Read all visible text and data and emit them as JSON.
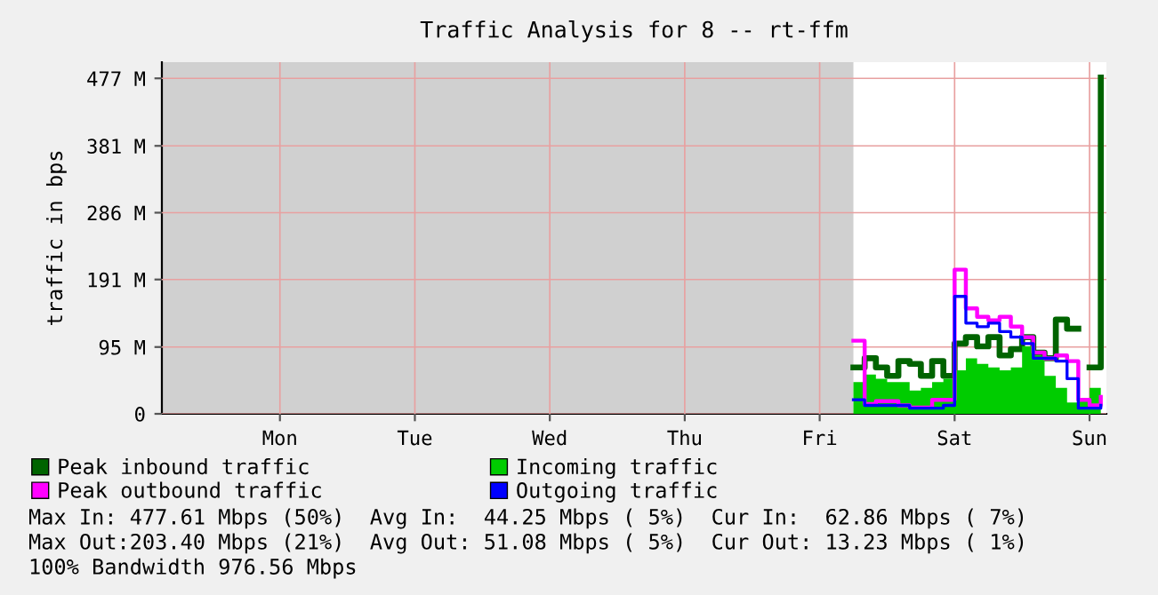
{
  "chart_data": {
    "type": "step",
    "title": "Traffic Analysis for 8 -- rt-ffm",
    "ylabel": "traffic in bps",
    "categories": [
      null,
      null,
      null,
      null,
      null,
      null,
      null,
      null,
      null,
      null,
      "Mon",
      null,
      null,
      null,
      null,
      null,
      null,
      null,
      null,
      null,
      null,
      null,
      "Tue",
      null,
      null,
      null,
      null,
      null,
      null,
      null,
      null,
      null,
      null,
      null,
      "Wed",
      null,
      null,
      null,
      null,
      null,
      null,
      null,
      null,
      null,
      null,
      null,
      "Thu",
      null,
      null,
      null,
      null,
      null,
      null,
      null,
      null,
      null,
      null,
      null,
      "Fri",
      null,
      null,
      null,
      null,
      null,
      null,
      null,
      null,
      null,
      null,
      null,
      "Sat",
      null,
      null,
      null,
      null,
      null,
      null,
      null,
      null,
      null,
      null,
      null,
      "Sun",
      null
    ],
    "ylim": [
      0,
      500
    ],
    "yticks": [
      0,
      {
        "value": 95,
        "label": "95 M"
      },
      {
        "value": 191,
        "label": "191 M"
      },
      {
        "value": 286,
        "label": "286 M"
      },
      {
        "value": 381,
        "label": "381 M"
      },
      {
        "value": 477,
        "label": "477 M"
      }
    ],
    "grid": true,
    "legend": "bottom",
    "series": [
      {
        "name": "Peak inbound traffic",
        "color": "#006400",
        "values": [
          null,
          null,
          null,
          null,
          null,
          null,
          null,
          null,
          null,
          null,
          null,
          null,
          null,
          null,
          null,
          null,
          null,
          null,
          null,
          null,
          null,
          null,
          null,
          null,
          null,
          null,
          null,
          null,
          null,
          null,
          null,
          null,
          null,
          null,
          null,
          null,
          null,
          null,
          null,
          null,
          null,
          null,
          null,
          null,
          null,
          null,
          null,
          null,
          null,
          null,
          null,
          null,
          null,
          null,
          null,
          null,
          null,
          null,
          null,
          null,
          null,
          66,
          79,
          66,
          54,
          75,
          71,
          54,
          75,
          54,
          100,
          109,
          96,
          109,
          83,
          92,
          109,
          87,
          79,
          134,
          121,
          null,
          66,
          478
        ]
      },
      {
        "name": "Incoming traffic",
        "type": "area",
        "color": "#00cc00",
        "values": [
          null,
          null,
          null,
          null,
          null,
          null,
          null,
          null,
          null,
          null,
          null,
          null,
          null,
          null,
          null,
          null,
          null,
          null,
          null,
          null,
          null,
          null,
          null,
          null,
          null,
          null,
          null,
          null,
          null,
          null,
          null,
          null,
          null,
          null,
          null,
          null,
          null,
          null,
          null,
          null,
          null,
          null,
          null,
          null,
          null,
          null,
          null,
          null,
          null,
          null,
          null,
          null,
          null,
          null,
          null,
          null,
          null,
          null,
          null,
          null,
          null,
          45,
          56,
          50,
          45,
          45,
          33,
          37,
          45,
          50,
          62,
          79,
          71,
          66,
          62,
          66,
          96,
          83,
          54,
          37,
          16,
          20,
          37,
          58
        ]
      },
      {
        "name": "Peak outbound traffic",
        "color": "#ff00ff",
        "values": [
          null,
          null,
          null,
          null,
          null,
          null,
          null,
          null,
          null,
          null,
          null,
          null,
          null,
          null,
          null,
          null,
          null,
          null,
          null,
          null,
          null,
          null,
          null,
          null,
          null,
          null,
          null,
          null,
          null,
          null,
          null,
          null,
          null,
          null,
          null,
          null,
          null,
          null,
          null,
          null,
          null,
          null,
          null,
          null,
          null,
          null,
          null,
          null,
          null,
          null,
          null,
          null,
          null,
          null,
          null,
          null,
          null,
          null,
          null,
          null,
          null,
          104,
          14,
          18,
          18,
          12,
          9,
          9,
          20,
          20,
          205,
          150,
          138,
          133,
          138,
          124,
          109,
          87,
          79,
          83,
          75,
          20,
          12,
          24
        ]
      },
      {
        "name": "Outgoing traffic",
        "color": "#0000ff",
        "values": [
          null,
          null,
          null,
          null,
          null,
          null,
          null,
          null,
          null,
          null,
          null,
          null,
          null,
          null,
          null,
          null,
          null,
          null,
          null,
          null,
          null,
          null,
          null,
          null,
          null,
          null,
          null,
          null,
          null,
          null,
          null,
          null,
          null,
          null,
          null,
          null,
          null,
          null,
          null,
          null,
          null,
          null,
          null,
          null,
          null,
          null,
          null,
          null,
          null,
          null,
          null,
          null,
          null,
          null,
          null,
          null,
          null,
          null,
          null,
          null,
          null,
          20,
          12,
          12,
          12,
          12,
          8,
          8,
          8,
          12,
          167,
          129,
          124,
          129,
          117,
          109,
          100,
          79,
          79,
          75,
          50,
          8,
          8,
          12
        ]
      }
    ],
    "annotations": [
      "Max In: 477.61 Mbps (50%)  Avg In:  44.25 Mbps ( 5%)  Cur In:  62.86 Mbps ( 7%)",
      "Max Out:203.40 Mbps (21%)  Avg Out: 51.08 Mbps ( 5%)  Cur Out: 13.23 Mbps ( 1%)",
      "100% Bandwidth 976.56 Mbps"
    ]
  }
}
